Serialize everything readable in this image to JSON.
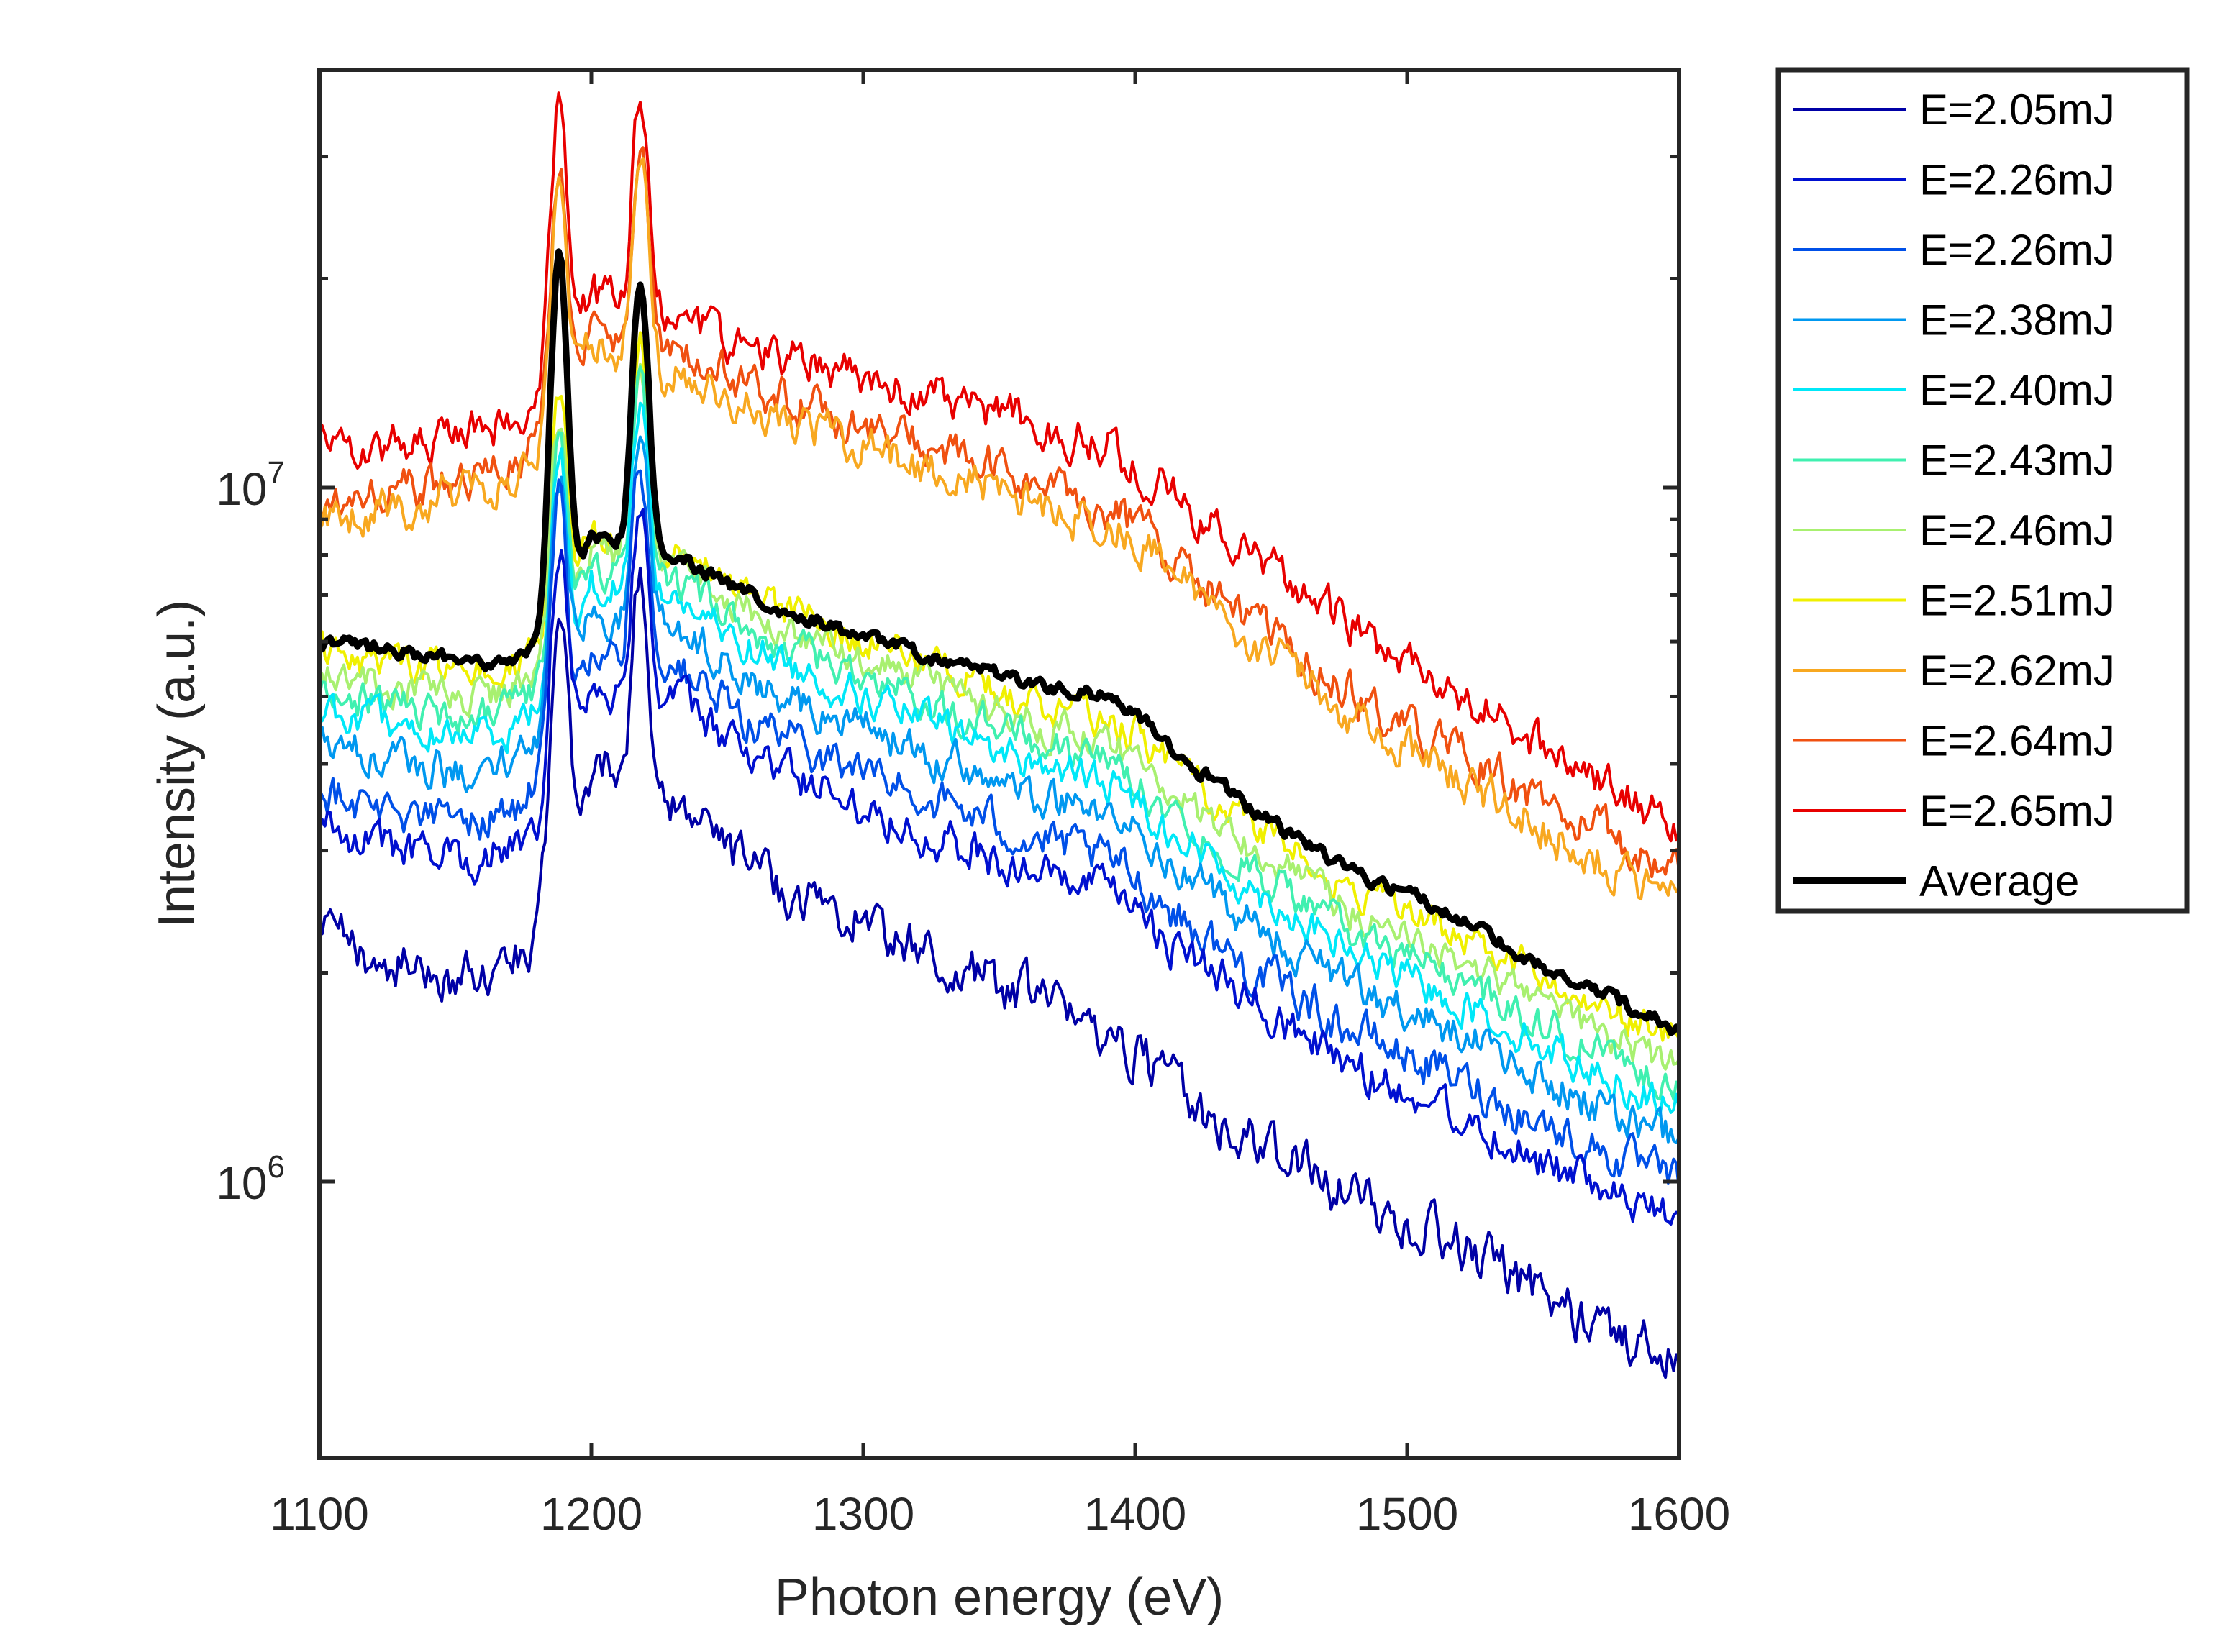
{
  "chart_data": {
    "type": "line",
    "title": "",
    "xlabel": "Photon energy (eV)",
    "ylabel": "Intensity (a.u.)",
    "x_range": [
      1100,
      1600
    ],
    "y_range": [
      400000,
      40000000
    ],
    "y_scale": "log",
    "x_ticks": [
      1100,
      1200,
      1300,
      1400,
      1500,
      1600
    ],
    "x_tick_labels": [
      "1100",
      "1200",
      "1300",
      "1400",
      "1500",
      "1600"
    ],
    "y_tick_labels": [
      {
        "value": 1000000,
        "base": "10",
        "exp": "6"
      },
      {
        "value": 10000000,
        "base": "10",
        "exp": "7"
      }
    ],
    "grid": false,
    "legend_position": "outside-top-right",
    "peaks": [
      {
        "energy": 1188,
        "width": 2.6
      },
      {
        "energy": 1218,
        "width": 2.6
      }
    ],
    "x": [
      1100,
      1110,
      1120,
      1130,
      1140,
      1150,
      1160,
      1170,
      1180,
      1200,
      1230,
      1250,
      1270,
      1300,
      1330,
      1360,
      1390,
      1400,
      1420,
      1440,
      1460,
      1480,
      1500,
      1520,
      1540,
      1560,
      1580,
      1600
    ],
    "series": [
      {
        "name": "E=2.05mJ",
        "color": "#0000a6",
        "width": 4,
        "noise": 0.07,
        "peak_amps": [
          1.3,
          1.0
        ],
        "values": [
          2300000,
          2200000,
          2100000,
          2050000,
          2000000,
          1950000,
          2000000,
          2050000,
          2300000,
          4000000,
          3600000,
          3000000,
          2650000,
          2400000,
          2050000,
          1850000,
          1650000,
          1550000,
          1300000,
          1150000,
          1050000,
          950000,
          880000,
          800000,
          730000,
          650000,
          600000,
          560000
        ]
      },
      {
        "name": "E=2.26mJ",
        "color": "#0010d0",
        "width": 4,
        "noise": 0.06,
        "peak_amps": [
          1.1,
          0.9
        ],
        "values": [
          3300000,
          3200000,
          3100000,
          3000000,
          2950000,
          2900000,
          2950000,
          3000000,
          3300000,
          5200000,
          5000000,
          4300000,
          3900000,
          3500000,
          3100000,
          2800000,
          2600000,
          2450000,
          2100000,
          1850000,
          1650000,
          1450000,
          1350000,
          1250000,
          1120000,
          1020000,
          930000,
          870000
        ]
      },
      {
        "name": "E=2.26mJ",
        "color": "#0050e8",
        "width": 4,
        "noise": 0.06,
        "peak_amps": [
          1.1,
          0.9
        ],
        "values": [
          3700000,
          3600000,
          3500000,
          3400000,
          3350000,
          3300000,
          3350000,
          3400000,
          3700000,
          5800000,
          5600000,
          4800000,
          4400000,
          3900000,
          3500000,
          3150000,
          2900000,
          2750000,
          2350000,
          2050000,
          1850000,
          1650000,
          1520000,
          1400000,
          1270000,
          1160000,
          1070000,
          990000
        ]
      },
      {
        "name": "E=2.38mJ",
        "color": "#0098f0",
        "width": 4,
        "noise": 0.055,
        "peak_amps": [
          1.0,
          0.9
        ],
        "values": [
          4300000,
          4200000,
          4100000,
          4000000,
          3950000,
          3900000,
          3950000,
          4000000,
          4300000,
          6600000,
          6400000,
          5500000,
          5000000,
          4500000,
          4050000,
          3650000,
          3350000,
          3200000,
          2750000,
          2400000,
          2150000,
          1900000,
          1760000,
          1620000,
          1470000,
          1340000,
          1230000,
          1140000
        ]
      },
      {
        "name": "E=2.40mJ",
        "color": "#00e8f8",
        "width": 4,
        "noise": 0.05,
        "peak_amps": [
          1.0,
          0.9
        ],
        "values": [
          4800000,
          4700000,
          4600000,
          4500000,
          4450000,
          4400000,
          4450000,
          4500000,
          4800000,
          7200000,
          7000000,
          6100000,
          5600000,
          5000000,
          4500000,
          4050000,
          3750000,
          3550000,
          3050000,
          2680000,
          2400000,
          2130000,
          1970000,
          1810000,
          1650000,
          1500000,
          1380000,
          1280000
        ]
      },
      {
        "name": "E=2.43mJ",
        "color": "#40f0b0",
        "width": 4,
        "noise": 0.05,
        "peak_amps": [
          1.0,
          0.9
        ],
        "values": [
          5100000,
          5000000,
          4900000,
          4800000,
          4750000,
          4700000,
          4750000,
          4800000,
          5100000,
          7600000,
          7400000,
          6500000,
          5950000,
          5350000,
          4800000,
          4350000,
          4000000,
          3800000,
          3280000,
          2870000,
          2570000,
          2280000,
          2110000,
          1940000,
          1770000,
          1610000,
          1480000,
          1370000
        ]
      },
      {
        "name": "E=2.46mJ",
        "color": "#a8f070",
        "width": 4,
        "noise": 0.05,
        "peak_amps": [
          1.0,
          0.9
        ],
        "values": [
          5400000,
          5300000,
          5200000,
          5100000,
          5050000,
          5000000,
          5050000,
          5100000,
          5400000,
          8000000,
          7800000,
          6900000,
          6300000,
          5700000,
          5100000,
          4600000,
          4250000,
          4050000,
          3500000,
          3060000,
          2740000,
          2430000,
          2250000,
          2070000,
          1890000,
          1720000,
          1580000,
          1460000
        ]
      },
      {
        "name": "E=2.51mJ",
        "color": "#f0f000",
        "width": 4,
        "noise": 0.05,
        "peak_amps": [
          1.0,
          0.9
        ],
        "values": [
          5800000,
          5700000,
          5600000,
          5500000,
          5450000,
          5400000,
          5450000,
          5500000,
          5800000,
          8500000,
          8300000,
          7300000,
          6700000,
          6050000,
          5450000,
          4950000,
          4600000,
          4400000,
          3800000,
          3330000,
          2980000,
          2650000,
          2450000,
          2260000,
          2060000,
          1880000,
          1730000,
          1600000
        ]
      },
      {
        "name": "E=2.62mJ",
        "color": "#f8a820",
        "width": 4,
        "noise": 0.06,
        "peak_amps": [
          1.2,
          1.0
        ],
        "values": [
          9000000,
          9200000,
          9300000,
          9400000,
          9600000,
          9800000,
          10000000,
          10200000,
          11000000,
          16000000,
          14500000,
          13500000,
          12500000,
          11500000,
          10500000,
          9600000,
          8800000,
          8400000,
          7200000,
          6200000,
          5400000,
          4700000,
          4200000,
          3800000,
          3400000,
          3050000,
          2750000,
          2500000
        ]
      },
      {
        "name": "E=2.64mJ",
        "color": "#f05010",
        "width": 4,
        "noise": 0.06,
        "peak_amps": [
          1.2,
          1.0
        ],
        "values": [
          9500000,
          9700000,
          9800000,
          9900000,
          10100000,
          10300000,
          10500000,
          10700000,
          11500000,
          16500000,
          15500000,
          14500000,
          13500000,
          12300000,
          11200000,
          10200000,
          9300000,
          8900000,
          7600000,
          6500000,
          5700000,
          5000000,
          4500000,
          4100000,
          3700000,
          3350000,
          3050000,
          2800000
        ]
      },
      {
        "name": "E=2.65mJ",
        "color": "#e80000",
        "width": 4,
        "noise": 0.06,
        "peak_amps": [
          1.3,
          1.0
        ],
        "values": [
          12000000,
          11800000,
          11500000,
          11500000,
          11800000,
          12000000,
          12300000,
          12600000,
          13500000,
          19000000,
          18000000,
          16500000,
          15500000,
          14500000,
          13500000,
          12500000,
          11500000,
          10800000,
          9300000,
          8100000,
          7100000,
          6300000,
          5600000,
          5000000,
          4500000,
          4000000,
          3600000,
          3300000
        ]
      },
      {
        "name": "Average",
        "color": "#000000",
        "width": 9,
        "noise": 0.02,
        "peak_amps": [
          2.1,
          1.4
        ],
        "values": [
          6000000,
          6000000,
          5900000,
          5800000,
          5700000,
          5600000,
          5550000,
          5600000,
          6000000,
          8500000,
          8000000,
          7300000,
          6700000,
          6100000,
          5600000,
          5250000,
          5000000,
          4700000,
          4000000,
          3500000,
          3100000,
          2800000,
          2600000,
          2400000,
          2150000,
          1950000,
          1800000,
          1650000
        ]
      }
    ]
  }
}
